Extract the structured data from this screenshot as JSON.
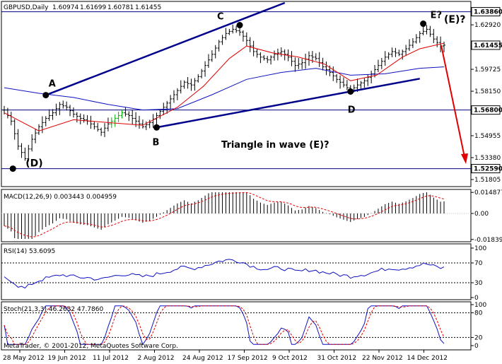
{
  "chart_data": {
    "type": "ohlc",
    "symbol": "GBPUSD,Daily",
    "ohlc_readout": [
      "1.60974",
      "1.61699",
      "1.60781",
      "1.61455"
    ],
    "price_axis": {
      "ylim": [
        1.514,
        1.645
      ],
      "ticks": [
        "1.62920",
        "1.59725",
        "1.58150",
        "1.56800",
        "1.54955",
        "1.53380",
        "1.51805"
      ],
      "marked_levels": {
        "top": "1.63860",
        "current": "1.61455",
        "hline_mid": "1.56800",
        "hline_low": "1.52590"
      }
    },
    "x_axis": {
      "ticks": [
        "28 May 2012",
        "19 Jun 2012",
        "11 Jul 2012",
        "2 Aug 2012",
        "24 Aug 2012",
        "17 Sep 2012",
        "9 Oct 2012",
        "31 Oct 2012",
        "22 Nov 2012",
        "14 Dec 2012"
      ]
    },
    "close_path": [
      [
        0,
        1.568
      ],
      [
        4,
        1.56
      ],
      [
        8,
        1.542
      ],
      [
        12,
        1.533
      ],
      [
        16,
        1.547
      ],
      [
        20,
        1.556
      ],
      [
        24,
        1.562
      ],
      [
        28,
        1.566
      ],
      [
        32,
        1.572
      ],
      [
        36,
        1.57
      ],
      [
        40,
        1.565
      ],
      [
        44,
        1.562
      ],
      [
        48,
        1.56
      ],
      [
        52,
        1.556
      ],
      [
        56,
        1.552
      ],
      [
        60,
        1.558
      ],
      [
        64,
        1.562
      ],
      [
        68,
        1.566
      ],
      [
        72,
        1.564
      ],
      [
        76,
        1.56
      ],
      [
        80,
        1.556
      ],
      [
        84,
        1.559
      ],
      [
        88,
        1.564
      ],
      [
        92,
        1.57
      ],
      [
        96,
        1.576
      ],
      [
        100,
        1.582
      ],
      [
        104,
        1.588
      ],
      [
        108,
        1.586
      ],
      [
        112,
        1.592
      ],
      [
        116,
        1.6
      ],
      [
        120,
        1.608
      ],
      [
        124,
        1.617
      ],
      [
        128,
        1.623
      ],
      [
        132,
        1.626
      ],
      [
        136,
        1.624
      ],
      [
        140,
        1.618
      ],
      [
        144,
        1.61
      ],
      [
        148,
        1.606
      ],
      [
        152,
        1.604
      ],
      [
        156,
        1.608
      ],
      [
        160,
        1.61
      ],
      [
        164,
        1.606
      ],
      [
        168,
        1.6
      ],
      [
        172,
        1.602
      ],
      [
        176,
        1.607
      ],
      [
        180,
        1.605
      ],
      [
        184,
        1.599
      ],
      [
        188,
        1.595
      ],
      [
        192,
        1.59
      ],
      [
        196,
        1.586
      ],
      [
        200,
        1.582
      ],
      [
        204,
        1.586
      ],
      [
        208,
        1.589
      ],
      [
        212,
        1.594
      ],
      [
        216,
        1.6
      ],
      [
        220,
        1.606
      ],
      [
        224,
        1.61
      ],
      [
        228,
        1.608
      ],
      [
        232,
        1.612
      ],
      [
        236,
        1.617
      ],
      [
        240,
        1.623
      ],
      [
        244,
        1.626
      ],
      [
        248,
        1.619
      ],
      [
        252,
        1.614
      ],
      [
        254,
        1.6146
      ]
    ],
    "ma_fast": [
      [
        0,
        1.566
      ],
      [
        20,
        1.553
      ],
      [
        40,
        1.561
      ],
      [
        60,
        1.559
      ],
      [
        80,
        1.557
      ],
      [
        100,
        1.57
      ],
      [
        115,
        1.585
      ],
      [
        130,
        1.605
      ],
      [
        140,
        1.614
      ],
      [
        155,
        1.609
      ],
      [
        170,
        1.606
      ],
      [
        185,
        1.601
      ],
      [
        200,
        1.589
      ],
      [
        215,
        1.593
      ],
      [
        230,
        1.606
      ],
      [
        240,
        1.612
      ],
      [
        254,
        1.616
      ]
    ],
    "ma_slow": [
      [
        0,
        1.584
      ],
      [
        20,
        1.58
      ],
      [
        40,
        1.577
      ],
      [
        60,
        1.572
      ],
      [
        80,
        1.568
      ],
      [
        100,
        1.569
      ],
      [
        120,
        1.579
      ],
      [
        140,
        1.59
      ],
      [
        160,
        1.595
      ],
      [
        180,
        1.598
      ],
      [
        200,
        1.593
      ],
      [
        220,
        1.594
      ],
      [
        240,
        1.598
      ],
      [
        254,
        1.599
      ]
    ],
    "wave_labels": {
      "A": "A",
      "B": "B",
      "C": "C",
      "D": "D",
      "E": "E?",
      "E_paren": "(E)?",
      "D_paren": "(D)"
    },
    "wave_points": {
      "D_paren": [
        5,
        1.5259
      ],
      "A": [
        24,
        1.5787
      ],
      "B": [
        88,
        1.5555
      ],
      "C": [
        136,
        1.629
      ],
      "D": [
        200,
        1.5813
      ],
      "E": [
        242,
        1.63
      ]
    },
    "annotation": "Triangle in wave (E)?",
    "macd": {
      "label": "MACD(12,26,9) 0.003443 0.004959",
      "ylim": [
        -0.019,
        0.016
      ],
      "ticks": [
        "0.014877",
        "0.00",
        "-0.018399"
      ]
    },
    "rsi": {
      "label": "RSI(14) 53.6095",
      "ylim": [
        0,
        100
      ],
      "ticks": [
        "100",
        "70",
        "30",
        "0"
      ],
      "levels": [
        70,
        30
      ]
    },
    "stoch": {
      "label": "Stoch(21,3,3) 46.2632 47.7860",
      "ylim": [
        0,
        100
      ],
      "ticks": [
        "100",
        "80",
        "20",
        "0"
      ],
      "levels": [
        80,
        20
      ]
    },
    "footer": "MetaTrader, © 2001-2012, MetaQuotes Software Corp.",
    "colors": {
      "bars": "#000000",
      "ma_fast": "#e00000",
      "ma_slow": "#1010c0",
      "trend": "#00008b",
      "arrow": "#e00000",
      "signal": "#e00000",
      "indicator": "#1010c0"
    }
  }
}
